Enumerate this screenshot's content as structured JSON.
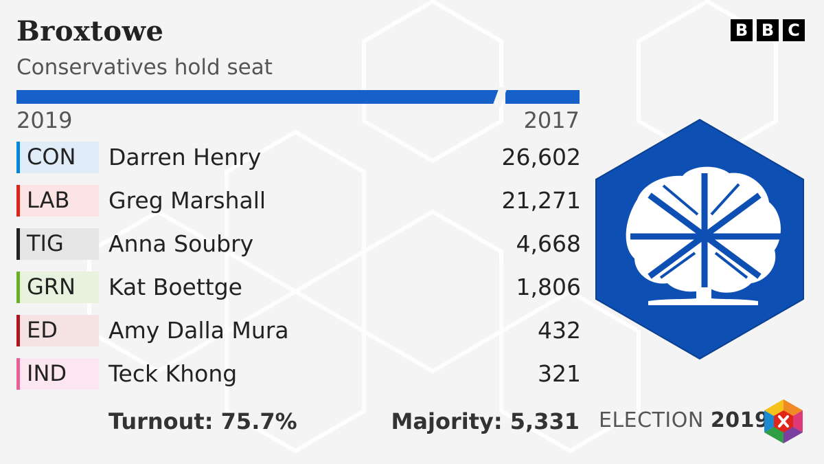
{
  "header": {
    "constituency": "Broxtowe",
    "result": "Conservatives hold seat",
    "brand": [
      "B",
      "B",
      "C"
    ]
  },
  "years": {
    "left": "2019",
    "right": "2017"
  },
  "results": [
    {
      "party": "CON",
      "candidate": "Darren Henry",
      "votes": "26,602",
      "color": "#0087dc",
      "tint": "#e0edf8"
    },
    {
      "party": "LAB",
      "candidate": "Greg Marshall",
      "votes": "21,271",
      "color": "#dc241f",
      "tint": "#fbe4e3"
    },
    {
      "party": "TIG",
      "candidate": "Anna Soubry",
      "votes": "4,668",
      "color": "#222222",
      "tint": "#e6e6e6"
    },
    {
      "party": "GRN",
      "candidate": "Kat Boettge",
      "votes": "1,806",
      "color": "#6ab023",
      "tint": "#e8f3df"
    },
    {
      "party": "ED",
      "candidate": "Amy Dalla Mura",
      "votes": "432",
      "color": "#b0151b",
      "tint": "#f5e2e2"
    },
    {
      "party": "IND",
      "candidate": "Teck Khong",
      "votes": "321",
      "color": "#e85f9a",
      "tint": "#fce6ef"
    }
  ],
  "footer": {
    "turnout": "Turnout: 75.7%",
    "majority": "Majority: 5,331",
    "election_word": "ELECTION",
    "election_year": "2019"
  },
  "emblem": {
    "icon": "conservative-tree-icon",
    "color": "#0e4fb3"
  },
  "accent_bar_color": "#1660c9"
}
